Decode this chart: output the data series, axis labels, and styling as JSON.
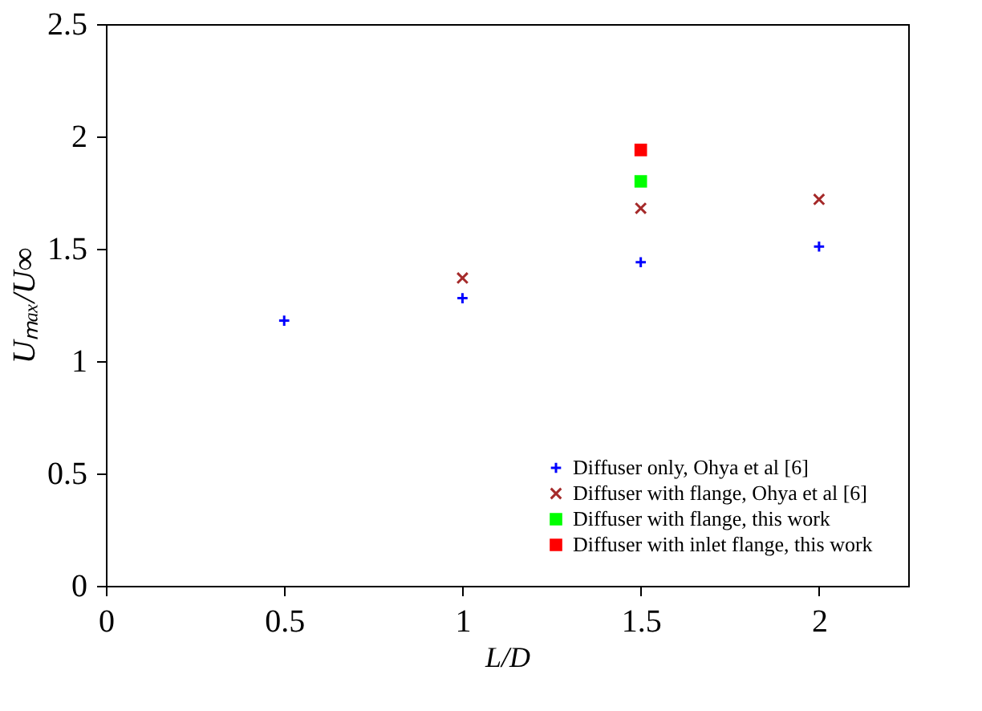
{
  "chart_data": {
    "type": "scatter",
    "xlabel": "L/D",
    "ylabel": "Uₘₐₓ/U∞",
    "xlim": [
      0,
      2.25
    ],
    "ylim": [
      0,
      2.5
    ],
    "xticks": [
      0,
      0.5,
      1,
      1.5,
      2
    ],
    "yticks": [
      0,
      0.5,
      1,
      1.5,
      2,
      2.5
    ],
    "grid": false,
    "legend": "bottom right",
    "series": [
      {
        "name": "Diffuser only, Ohya et al [6]",
        "color": "#0000ff",
        "marker": "plus",
        "x": [
          0.5,
          1,
          1.5,
          2
        ],
        "values": [
          1.18,
          1.28,
          1.44,
          1.51
        ]
      },
      {
        "name": "Diffuser with flange, Ohya et al [6]",
        "color": "#a52a2a",
        "marker": "cross",
        "x": [
          1,
          1.5,
          2
        ],
        "values": [
          1.37,
          1.68,
          1.72
        ]
      },
      {
        "name": "Diffuser with flange, this work",
        "color": "#00ff00",
        "marker": "square",
        "x": [
          1.5
        ],
        "values": [
          1.8
        ]
      },
      {
        "name": "Diffuser with inlet  flange, this work",
        "color": "#ff0000",
        "marker": "square",
        "x": [
          1.5
        ],
        "values": [
          1.94
        ]
      }
    ]
  }
}
